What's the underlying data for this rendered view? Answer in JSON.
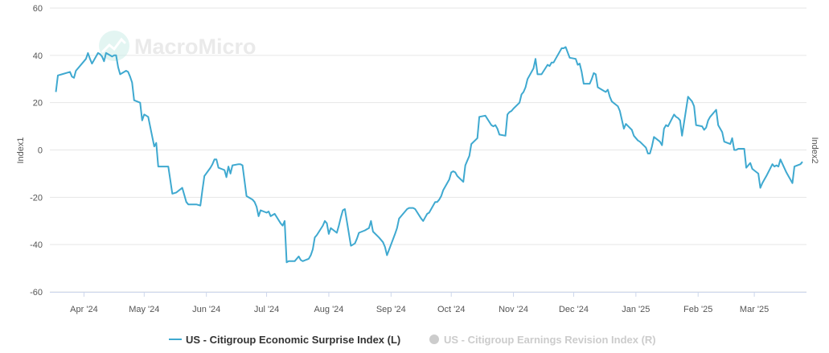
{
  "watermark": "MacroMicro",
  "chart_data": {
    "type": "line",
    "ylabel_left": "Index1",
    "ylabel_right": "Index2",
    "ylim": [
      -60,
      60
    ],
    "y_ticks": [
      {
        "value": 60,
        "label": "60"
      },
      {
        "value": 40,
        "label": "40"
      },
      {
        "value": 20,
        "label": "20"
      },
      {
        "value": 0,
        "label": "0"
      },
      {
        "value": -20,
        "label": "-20"
      },
      {
        "value": -40,
        "label": "-40"
      },
      {
        "value": -60,
        "label": "-60"
      }
    ],
    "x_range": [
      "2024-03-15",
      "2025-03-27"
    ],
    "x_ticks": [
      {
        "date": "2024-04-01",
        "label": "Apr '24"
      },
      {
        "date": "2024-05-01",
        "label": "May '24"
      },
      {
        "date": "2024-06-01",
        "label": "Jun '24"
      },
      {
        "date": "2024-07-01",
        "label": "Jul '24"
      },
      {
        "date": "2024-08-01",
        "label": "Aug '24"
      },
      {
        "date": "2024-09-01",
        "label": "Sep '24"
      },
      {
        "date": "2024-10-01",
        "label": "Oct '24"
      },
      {
        "date": "2024-11-01",
        "label": "Nov '24"
      },
      {
        "date": "2024-12-01",
        "label": "Dec '24"
      },
      {
        "date": "2025-01-01",
        "label": "Jan '25"
      },
      {
        "date": "2025-02-01",
        "label": "Feb '25"
      },
      {
        "date": "2025-03-01",
        "label": "Mar '25"
      }
    ],
    "grid": {
      "horizontal": true,
      "vertical": false
    },
    "legend_position": "bottom-center",
    "series": [
      {
        "name": "US - Citigroup Economic Surprise Index (L)",
        "color": "#3fa9d0",
        "visible": true,
        "points": [
          [
            "2024-03-18",
            24.5
          ],
          [
            "2024-03-19",
            31.5
          ],
          [
            "2024-03-21",
            32.0
          ],
          [
            "2024-03-25",
            33.0
          ],
          [
            "2024-03-26",
            31.0
          ],
          [
            "2024-03-27",
            30.5
          ],
          [
            "2024-03-28",
            33.5
          ],
          [
            "2024-04-01",
            37.5
          ],
          [
            "2024-04-02",
            38.5
          ],
          [
            "2024-04-03",
            41.0
          ],
          [
            "2024-04-04",
            38.5
          ],
          [
            "2024-04-05",
            36.5
          ],
          [
            "2024-04-08",
            41.0
          ],
          [
            "2024-04-09",
            40.5
          ],
          [
            "2024-04-10",
            39.5
          ],
          [
            "2024-04-11",
            37.5
          ],
          [
            "2024-04-12",
            41.0
          ],
          [
            "2024-04-15",
            39.5
          ],
          [
            "2024-04-16",
            40.0
          ],
          [
            "2024-04-17",
            40.0
          ],
          [
            "2024-04-18",
            35.0
          ],
          [
            "2024-04-19",
            32.0
          ],
          [
            "2024-04-22",
            33.5
          ],
          [
            "2024-04-23",
            33.0
          ],
          [
            "2024-04-24",
            31.0
          ],
          [
            "2024-04-25",
            28.5
          ],
          [
            "2024-04-26",
            21.0
          ],
          [
            "2024-04-29",
            20.0
          ],
          [
            "2024-04-30",
            12.5
          ],
          [
            "2024-05-01",
            15.0
          ],
          [
            "2024-05-02",
            14.5
          ],
          [
            "2024-05-03",
            14.0
          ],
          [
            "2024-05-06",
            1.5
          ],
          [
            "2024-05-07",
            3.0
          ],
          [
            "2024-05-08",
            -7.0
          ],
          [
            "2024-05-10",
            -7.0
          ],
          [
            "2024-05-13",
            -7.0
          ],
          [
            "2024-05-15",
            -18.5
          ],
          [
            "2024-05-17",
            -18.0
          ],
          [
            "2024-05-20",
            -16.0
          ],
          [
            "2024-05-22",
            -22.0
          ],
          [
            "2024-05-23",
            -23.0
          ],
          [
            "2024-05-27",
            -23.0
          ],
          [
            "2024-05-29",
            -23.5
          ],
          [
            "2024-05-30",
            -17.0
          ],
          [
            "2024-05-31",
            -11.0
          ],
          [
            "2024-06-03",
            -7.5
          ],
          [
            "2024-06-04",
            -6.0
          ],
          [
            "2024-06-05",
            -4.0
          ],
          [
            "2024-06-06",
            -4.0
          ],
          [
            "2024-06-07",
            -7.5
          ],
          [
            "2024-06-10",
            -8.5
          ],
          [
            "2024-06-11",
            -11.5
          ],
          [
            "2024-06-12",
            -7.0
          ],
          [
            "2024-06-13",
            -10.0
          ],
          [
            "2024-06-14",
            -6.5
          ],
          [
            "2024-06-17",
            -6.0
          ],
          [
            "2024-06-18",
            -6.0
          ],
          [
            "2024-06-19",
            -6.5
          ],
          [
            "2024-06-20",
            -13.0
          ],
          [
            "2024-06-21",
            -19.5
          ],
          [
            "2024-06-24",
            -21.0
          ],
          [
            "2024-06-25",
            -22.0
          ],
          [
            "2024-06-26",
            -24.0
          ],
          [
            "2024-06-27",
            -28.0
          ],
          [
            "2024-06-28",
            -25.5
          ],
          [
            "2024-07-01",
            -26.5
          ],
          [
            "2024-07-02",
            -26.0
          ],
          [
            "2024-07-03",
            -28.0
          ],
          [
            "2024-07-05",
            -27.0
          ],
          [
            "2024-07-08",
            -31.0
          ],
          [
            "2024-07-09",
            -32.0
          ],
          [
            "2024-07-10",
            -30.0
          ],
          [
            "2024-07-11",
            -47.5
          ],
          [
            "2024-07-12",
            -47.0
          ],
          [
            "2024-07-15",
            -47.0
          ],
          [
            "2024-07-17",
            -45.0
          ],
          [
            "2024-07-18",
            -46.5
          ],
          [
            "2024-07-19",
            -47.0
          ],
          [
            "2024-07-22",
            -46.0
          ],
          [
            "2024-07-23",
            -44.5
          ],
          [
            "2024-07-24",
            -42.0
          ],
          [
            "2024-07-25",
            -37.0
          ],
          [
            "2024-07-26",
            -36.0
          ],
          [
            "2024-07-29",
            -32.0
          ],
          [
            "2024-07-30",
            -30.0
          ],
          [
            "2024-07-31",
            -31.0
          ],
          [
            "2024-08-01",
            -35.5
          ],
          [
            "2024-08-02",
            -33.0
          ],
          [
            "2024-08-05",
            -35.0
          ],
          [
            "2024-08-06",
            -32.0
          ],
          [
            "2024-08-07",
            -28.5
          ],
          [
            "2024-08-08",
            -25.5
          ],
          [
            "2024-08-09",
            -25.0
          ],
          [
            "2024-08-12",
            -40.5
          ],
          [
            "2024-08-13",
            -40.0
          ],
          [
            "2024-08-14",
            -39.5
          ],
          [
            "2024-08-15",
            -37.5
          ],
          [
            "2024-08-16",
            -35.0
          ],
          [
            "2024-08-19",
            -34.0
          ],
          [
            "2024-08-20",
            -33.5
          ],
          [
            "2024-08-21",
            -33.0
          ],
          [
            "2024-08-22",
            -30.0
          ],
          [
            "2024-08-23",
            -34.5
          ],
          [
            "2024-08-26",
            -37.0
          ],
          [
            "2024-08-28",
            -39.0
          ],
          [
            "2024-08-29",
            -41.0
          ],
          [
            "2024-08-30",
            -44.5
          ],
          [
            "2024-09-03",
            -35.5
          ],
          [
            "2024-09-04",
            -33.0
          ],
          [
            "2024-09-05",
            -29.0
          ],
          [
            "2024-09-06",
            -28.0
          ],
          [
            "2024-09-09",
            -25.0
          ],
          [
            "2024-09-10",
            -24.5
          ],
          [
            "2024-09-12",
            -24.5
          ],
          [
            "2024-09-13",
            -25.0
          ],
          [
            "2024-09-16",
            -29.0
          ],
          [
            "2024-09-17",
            -30.0
          ],
          [
            "2024-09-18",
            -28.5
          ],
          [
            "2024-09-19",
            -27.0
          ],
          [
            "2024-09-20",
            -26.5
          ],
          [
            "2024-09-23",
            -22.0
          ],
          [
            "2024-09-24",
            -22.0
          ],
          [
            "2024-09-25",
            -21.0
          ],
          [
            "2024-09-26",
            -19.5
          ],
          [
            "2024-09-27",
            -17.0
          ],
          [
            "2024-09-30",
            -12.5
          ],
          [
            "2024-10-01",
            -9.5
          ],
          [
            "2024-10-02",
            -9.0
          ],
          [
            "2024-10-03",
            -9.5
          ],
          [
            "2024-10-04",
            -11.0
          ],
          [
            "2024-10-07",
            -13.5
          ],
          [
            "2024-10-08",
            -6.5
          ],
          [
            "2024-10-09",
            -4.5
          ],
          [
            "2024-10-10",
            -2.5
          ],
          [
            "2024-10-11",
            2.5
          ],
          [
            "2024-10-14",
            5.0
          ],
          [
            "2024-10-15",
            14.0
          ],
          [
            "2024-10-18",
            14.5
          ],
          [
            "2024-10-21",
            10.5
          ],
          [
            "2024-10-22",
            10.0
          ],
          [
            "2024-10-23",
            10.5
          ],
          [
            "2024-10-24",
            9.0
          ],
          [
            "2024-10-25",
            6.5
          ],
          [
            "2024-10-28",
            6.0
          ],
          [
            "2024-10-29",
            15.0
          ],
          [
            "2024-10-30",
            16.0
          ],
          [
            "2024-10-31",
            16.5
          ],
          [
            "2024-11-01",
            17.5
          ],
          [
            "2024-11-04",
            20.0
          ],
          [
            "2024-11-05",
            23.5
          ],
          [
            "2024-11-06",
            24.5
          ],
          [
            "2024-11-07",
            26.5
          ],
          [
            "2024-11-08",
            30.0
          ],
          [
            "2024-11-11",
            34.5
          ],
          [
            "2024-11-12",
            38.5
          ],
          [
            "2024-11-13",
            32.0
          ],
          [
            "2024-11-15",
            32.0
          ],
          [
            "2024-11-18",
            36.0
          ],
          [
            "2024-11-19",
            35.5
          ],
          [
            "2024-11-20",
            37.0
          ],
          [
            "2024-11-21",
            37.0
          ],
          [
            "2024-11-22",
            38.5
          ],
          [
            "2024-11-25",
            43.0
          ],
          [
            "2024-11-26",
            43.0
          ],
          [
            "2024-11-27",
            43.5
          ],
          [
            "2024-11-29",
            39.0
          ],
          [
            "2024-12-02",
            38.5
          ],
          [
            "2024-12-03",
            36.0
          ],
          [
            "2024-12-04",
            36.5
          ],
          [
            "2024-12-05",
            33.0
          ],
          [
            "2024-12-06",
            28.0
          ],
          [
            "2024-12-09",
            28.0
          ],
          [
            "2024-12-10",
            30.0
          ],
          [
            "2024-12-11",
            32.5
          ],
          [
            "2024-12-12",
            32.0
          ],
          [
            "2024-12-13",
            26.5
          ],
          [
            "2024-12-16",
            25.0
          ],
          [
            "2024-12-17",
            24.5
          ],
          [
            "2024-12-18",
            25.5
          ],
          [
            "2024-12-19",
            22.5
          ],
          [
            "2024-12-20",
            20.5
          ],
          [
            "2024-12-23",
            18.5
          ],
          [
            "2024-12-24",
            16.5
          ],
          [
            "2024-12-26",
            9.0
          ],
          [
            "2024-12-27",
            11.0
          ],
          [
            "2024-12-30",
            8.5
          ],
          [
            "2024-12-31",
            6.0
          ],
          [
            "2025-01-02",
            4.0
          ],
          [
            "2025-01-03",
            3.5
          ],
          [
            "2025-01-06",
            1.0
          ],
          [
            "2025-01-07",
            -1.5
          ],
          [
            "2025-01-08",
            -1.5
          ],
          [
            "2025-01-09",
            1.5
          ],
          [
            "2025-01-10",
            5.5
          ],
          [
            "2025-01-13",
            3.5
          ],
          [
            "2025-01-14",
            2.0
          ],
          [
            "2025-01-15",
            9.0
          ],
          [
            "2025-01-16",
            10.5
          ],
          [
            "2025-01-17",
            10.0
          ],
          [
            "2025-01-20",
            15.0
          ],
          [
            "2025-01-21",
            14.0
          ],
          [
            "2025-01-22",
            13.5
          ],
          [
            "2025-01-23",
            12.5
          ],
          [
            "2025-01-24",
            6.0
          ],
          [
            "2025-01-27",
            22.5
          ],
          [
            "2025-01-28",
            21.5
          ],
          [
            "2025-01-29",
            20.5
          ],
          [
            "2025-01-30",
            18.5
          ],
          [
            "2025-01-31",
            10.5
          ],
          [
            "2025-02-03",
            10.0
          ],
          [
            "2025-02-04",
            8.5
          ],
          [
            "2025-02-05",
            9.5
          ],
          [
            "2025-02-06",
            12.5
          ],
          [
            "2025-02-07",
            14.0
          ],
          [
            "2025-02-10",
            17.0
          ],
          [
            "2025-02-11",
            10.5
          ],
          [
            "2025-02-12",
            9.0
          ],
          [
            "2025-02-13",
            7.5
          ],
          [
            "2025-02-14",
            3.5
          ],
          [
            "2025-02-17",
            2.5
          ],
          [
            "2025-02-18",
            5.0
          ],
          [
            "2025-02-19",
            0.0
          ],
          [
            "2025-02-20",
            0.0
          ],
          [
            "2025-02-21",
            0.5
          ],
          [
            "2025-02-24",
            0.5
          ],
          [
            "2025-02-25",
            -7.5
          ],
          [
            "2025-02-26",
            -6.5
          ],
          [
            "2025-02-27",
            -5.5
          ],
          [
            "2025-02-28",
            -8.0
          ],
          [
            "2025-03-03",
            -10.0
          ],
          [
            "2025-03-04",
            -16.0
          ],
          [
            "2025-03-05",
            -14.0
          ],
          [
            "2025-03-06",
            -12.5
          ],
          [
            "2025-03-07",
            -11.0
          ],
          [
            "2025-03-10",
            -6.0
          ],
          [
            "2025-03-11",
            -7.0
          ],
          [
            "2025-03-12",
            -6.5
          ],
          [
            "2025-03-13",
            -7.0
          ],
          [
            "2025-03-14",
            -4.0
          ],
          [
            "2025-03-17",
            -9.5
          ],
          [
            "2025-03-18",
            -11.0
          ],
          [
            "2025-03-19",
            -12.5
          ],
          [
            "2025-03-20",
            -14.0
          ],
          [
            "2025-03-21",
            -7.0
          ],
          [
            "2025-03-24",
            -6.0
          ],
          [
            "2025-03-25",
            -5.0
          ]
        ]
      },
      {
        "name": "US - Citigroup Earnings Revision Index (R)",
        "color": "#cccccc",
        "visible": false,
        "points": []
      }
    ]
  }
}
